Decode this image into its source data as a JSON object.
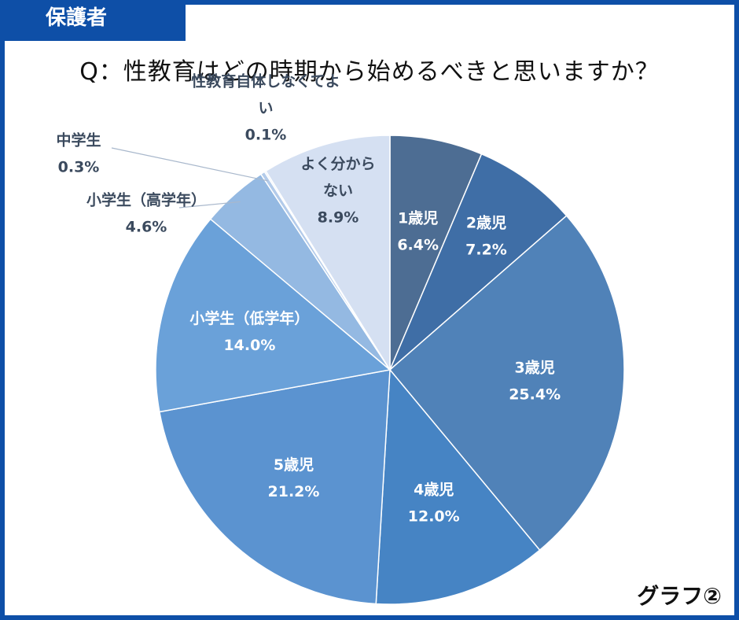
{
  "header": {
    "tag": "保護者",
    "title": "Q：性教育はどの時期から始めるべきと思いますか？",
    "graph_tag": "グラフ②"
  },
  "chart_data": {
    "type": "pie",
    "title": "Q：性教育はどの時期から始めるべきと思いますか？",
    "slices": [
      {
        "label": "1歳児",
        "value": 6.4,
        "display": "6.4%",
        "color": "#4d6d93",
        "text_color": "#ffffff"
      },
      {
        "label": "2歳児",
        "value": 7.2,
        "display": "7.2%",
        "color": "#3f6ea6",
        "text_color": "#ffffff"
      },
      {
        "label": "3歳児",
        "value": 25.4,
        "display": "25.4%",
        "color": "#5082b8",
        "text_color": "#ffffff"
      },
      {
        "label": "4歳児",
        "value": 12.0,
        "display": "12.0%",
        "color": "#4684c4",
        "text_color": "#ffffff"
      },
      {
        "label": "5歳児",
        "value": 21.2,
        "display": "21.2%",
        "color": "#5b93d0",
        "text_color": "#ffffff"
      },
      {
        "label": "小学生（低学年）",
        "value": 14.0,
        "display": "14.0%",
        "color": "#6aa1d9",
        "text_color": "#ffffff"
      },
      {
        "label": "小学生（高学年）",
        "value": 4.6,
        "display": "4.6%",
        "color": "#94b9e2",
        "text_color": "#3b4a5e"
      },
      {
        "label": "中学生",
        "value": 0.3,
        "display": "0.3%",
        "color": "#b3cbea",
        "text_color": "#3b4a5e"
      },
      {
        "label": "性教育自体しなくてよい",
        "label_lines": [
          "性教育自体しなくてよ",
          "い"
        ],
        "value": 0.1,
        "display": "0.1%",
        "color": "#c7d7ef",
        "text_color": "#3b4a5e"
      },
      {
        "label": "よく分からない",
        "label_lines": [
          "よく分から",
          "ない"
        ],
        "value": 8.9,
        "display": "8.9%",
        "color": "#d5e0f2",
        "text_color": "#3b4a5e"
      }
    ]
  }
}
